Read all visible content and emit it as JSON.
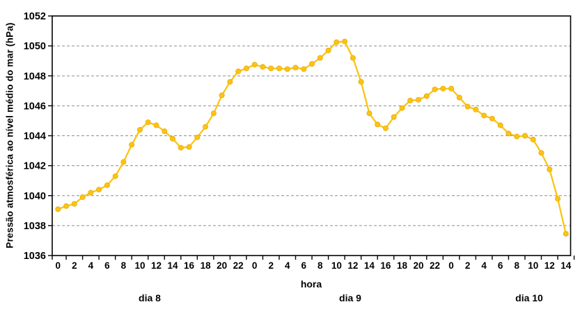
{
  "chart_data": {
    "type": "line",
    "title": "",
    "ylabel": "Pressão atmosférica ao nível médio do mar (hPa)",
    "xlabel": "hora",
    "ylim": [
      1036,
      1052
    ],
    "ytick_step": 2,
    "ytick_labels": [
      "1036",
      "1038",
      "1040",
      "1042",
      "1044",
      "1046",
      "1048",
      "1050",
      "1052"
    ],
    "grid": "horizontal-dashed",
    "legend": "none",
    "background_color": "#ffffff",
    "axis_color": "#000000",
    "grid_color": "#8c8c8c",
    "line_color": "#fbc411",
    "marker_color": "#fbc411",
    "marker_edge_color": "#e9a90c",
    "marker_shape": "circle",
    "days": [
      {
        "label": "dia 8",
        "xtick_labels": [
          "0",
          "2",
          "4",
          "6",
          "8",
          "10",
          "12",
          "14",
          "16",
          "18",
          "20",
          "22"
        ],
        "values": [
          1039.1,
          1039.3,
          1039.45,
          1039.9,
          1040.2,
          1040.4,
          1040.7,
          1041.3,
          1042.25,
          1043.4,
          1044.4,
          1044.9,
          1044.7,
          1044.3,
          1043.8,
          1043.2,
          1043.25,
          1043.9,
          1044.6,
          1045.5,
          1046.7,
          1047.6,
          1048.3,
          1048.5
        ]
      },
      {
        "label": "dia 9",
        "xtick_labels": [
          "0",
          "2",
          "4",
          "6",
          "8",
          "10",
          "12",
          "14",
          "16",
          "18",
          "20",
          "22"
        ],
        "values": [
          1048.75,
          1048.6,
          1048.5,
          1048.5,
          1048.45,
          1048.55,
          1048.45,
          1048.8,
          1049.2,
          1049.7,
          1050.25,
          1050.3,
          1049.2,
          1047.6,
          1045.5,
          1044.75,
          1044.5,
          1045.25,
          1045.85,
          1046.35,
          1046.4,
          1046.65,
          1047.1,
          1047.15
        ]
      },
      {
        "label": "dia 10",
        "xtick_labels": [
          "0",
          "2",
          "4",
          "6",
          "8",
          "10",
          "12",
          "14"
        ],
        "values": [
          1047.15,
          1046.55,
          1045.95,
          1045.75,
          1045.35,
          1045.15,
          1044.7,
          1044.15,
          1043.95,
          1044.0,
          1043.75,
          1042.85,
          1041.75,
          1039.8,
          1037.45
        ]
      }
    ],
    "sampling": "hourly points, one marker per hour, x tick labels every 2 hours"
  }
}
